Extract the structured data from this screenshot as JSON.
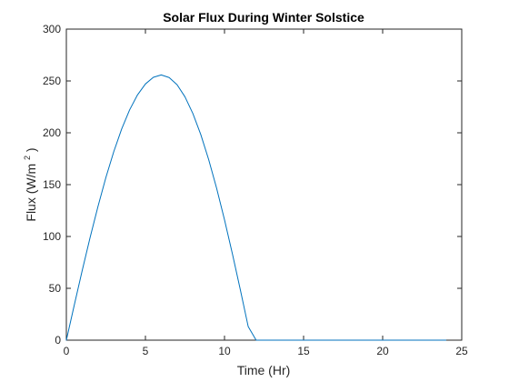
{
  "chart_data": {
    "type": "line",
    "title": "Solar Flux During Winter Solstice",
    "xlabel": "Time (Hr)",
    "ylabel_main": "Flux (W/m",
    "ylabel_sup": "2",
    "ylabel_end": ")",
    "xlim": [
      0,
      25
    ],
    "ylim": [
      0,
      300
    ],
    "x_ticks": [
      0,
      5,
      10,
      15,
      20,
      25
    ],
    "y_ticks": [
      0,
      50,
      100,
      150,
      200,
      250,
      300
    ],
    "grid": false,
    "series": [
      {
        "color": "#0072BD",
        "x": [
          0,
          0.5,
          1,
          1.5,
          2,
          2.5,
          3,
          3.5,
          4,
          4.5,
          5,
          5.5,
          6,
          6.5,
          7,
          7.5,
          8,
          8.5,
          9,
          9.5,
          10,
          10.5,
          11,
          11.5,
          12,
          12.5,
          13,
          14,
          15,
          16,
          17,
          18,
          19,
          20,
          21,
          22,
          23,
          24
        ],
        "y": [
          0,
          33.8,
          67.0,
          98.9,
          129.0,
          156.9,
          181.9,
          203.8,
          222.1,
          236.6,
          247.1,
          253.5,
          255.8,
          253.3,
          246.4,
          234.7,
          218.6,
          198.3,
          174.1,
          146.6,
          116.1,
          83.2,
          48.7,
          13.0,
          0,
          0,
          0,
          0,
          0,
          0,
          0,
          0,
          0,
          0,
          0,
          0,
          0,
          0
        ]
      }
    ]
  }
}
